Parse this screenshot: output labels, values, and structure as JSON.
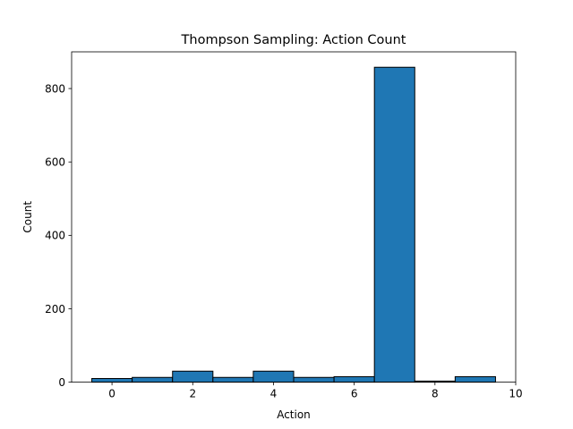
{
  "chart_data": {
    "type": "bar",
    "title": "Thompson Sampling: Action Count",
    "xlabel": "Action",
    "ylabel": "Count",
    "x": [
      0,
      1,
      2,
      3,
      4,
      5,
      6,
      7,
      8,
      9
    ],
    "values": [
      10,
      13,
      30,
      13,
      30,
      13,
      15,
      858,
      3,
      15
    ],
    "bar_width": 1,
    "xlim": [
      -1,
      10
    ],
    "ylim": [
      0,
      900
    ],
    "xticks": [
      0,
      2,
      4,
      6,
      8,
      10
    ],
    "yticks": [
      0,
      200,
      400,
      600,
      800
    ],
    "xtick_labels": [
      "0",
      "2",
      "4",
      "6",
      "8",
      "10"
    ],
    "ytick_labels": [
      "0",
      "200",
      "400",
      "600",
      "800"
    ],
    "bar_color": "#1f77b4",
    "edge_color": "#000000",
    "grid": false,
    "legend": "none"
  }
}
